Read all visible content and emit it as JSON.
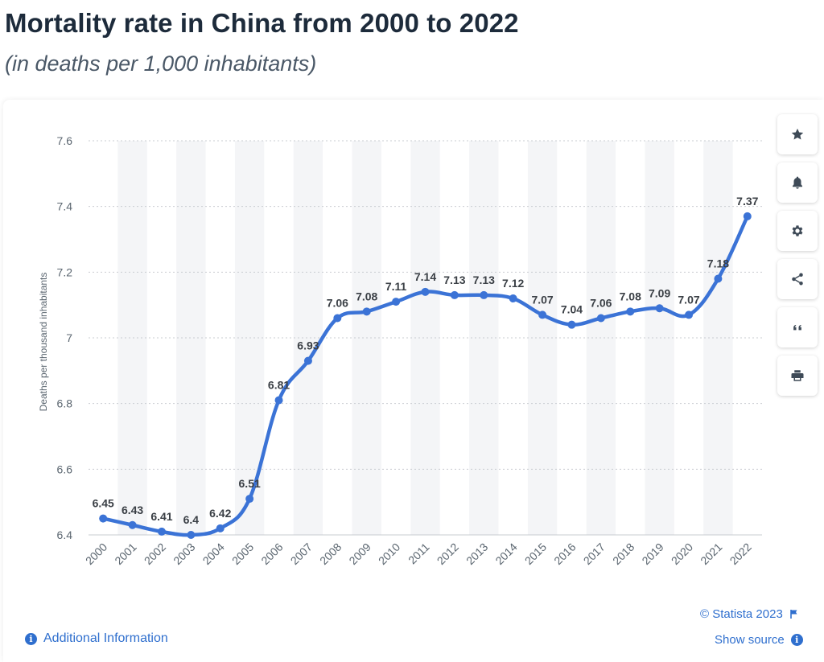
{
  "header": {
    "title": "Mortality rate in China from 2000 to 2022",
    "subtitle": "(in deaths per 1,000 inhabitants)"
  },
  "sidebar": {
    "buttons": [
      {
        "icon": "star-icon"
      },
      {
        "icon": "bell-icon"
      },
      {
        "icon": "gear-icon"
      },
      {
        "icon": "share-icon"
      },
      {
        "icon": "quote-icon"
      },
      {
        "icon": "print-icon"
      }
    ]
  },
  "footer": {
    "additional_info": "Additional Information",
    "copyright": "© Statista 2023",
    "show_source": "Show source"
  },
  "colors": {
    "line": "#3b73d6",
    "accent": "#2f6fce",
    "band": "#f4f5f7",
    "grid": "#c9ccd1"
  },
  "chart_data": {
    "type": "line",
    "title": "Mortality rate in China from 2000 to 2022",
    "ylabel": "Deaths per thousand inhabitants",
    "xlabel": "",
    "ylim": [
      6.4,
      7.6
    ],
    "yticks": [
      6.4,
      6.6,
      6.8,
      7,
      7.2,
      7.4,
      7.6
    ],
    "ytick_labels": [
      "6.4",
      "6.6",
      "6.8",
      "7",
      "7.2",
      "7.4",
      "7.6"
    ],
    "grid": true,
    "categories": [
      "2000",
      "2001",
      "2002",
      "2003",
      "2004",
      "2005",
      "2006",
      "2007",
      "2008",
      "2009",
      "2010",
      "2011",
      "2012",
      "2013",
      "2014",
      "2015",
      "2016",
      "2017",
      "2018",
      "2019",
      "2020",
      "2021",
      "2022"
    ],
    "values": [
      6.45,
      6.43,
      6.41,
      6.4,
      6.42,
      6.51,
      6.81,
      6.93,
      7.06,
      7.08,
      7.11,
      7.14,
      7.13,
      7.13,
      7.12,
      7.07,
      7.04,
      7.06,
      7.08,
      7.09,
      7.07,
      7.18,
      7.37
    ],
    "value_labels": [
      "6.45",
      "6.43",
      "6.41",
      "6.4",
      "6.42",
      "6.51",
      "6.81",
      "6.93",
      "7.06",
      "7.08",
      "7.11",
      "7.14",
      "7.13",
      "7.13",
      "7.12",
      "7.07",
      "7.04",
      "7.06",
      "7.08",
      "7.09",
      "7.07",
      "7.18",
      "7.37"
    ]
  }
}
